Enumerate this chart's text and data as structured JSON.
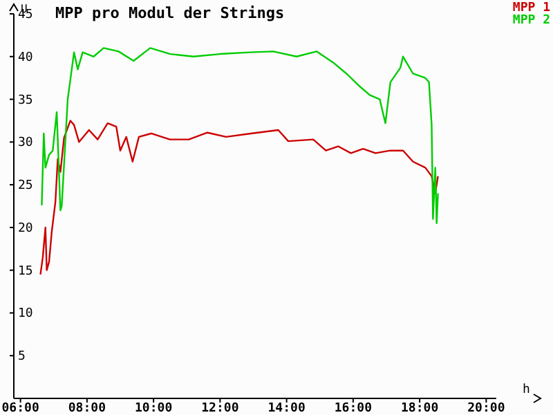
{
  "chart_data": {
    "type": "line",
    "title": "MPP pro Modul der Strings",
    "xlabel": "h",
    "ylabel": "U",
    "xlim": [
      5.8,
      20.3
    ],
    "ylim": [
      0,
      45
    ],
    "xticks": [
      {
        "value": 6,
        "label": "06:00"
      },
      {
        "value": 8,
        "label": "08:00"
      },
      {
        "value": 10,
        "label": "10:00"
      },
      {
        "value": 12,
        "label": "12:00"
      },
      {
        "value": 14,
        "label": "14:00"
      },
      {
        "value": 16,
        "label": "16:00"
      },
      {
        "value": 18,
        "label": "18:00"
      },
      {
        "value": 20,
        "label": "20:00"
      }
    ],
    "yticks": [
      5,
      10,
      15,
      20,
      25,
      30,
      35,
      40,
      45
    ],
    "legend": "top right",
    "marker": "none",
    "line_style": "solid",
    "series": [
      {
        "name": "MPP 1",
        "color": "#cc0000",
        "x": [
          6.6,
          6.67,
          6.75,
          6.79,
          6.86,
          6.94,
          7.05,
          7.12,
          7.2,
          7.31,
          7.5,
          7.61,
          7.76,
          8.06,
          8.32,
          8.62,
          8.88,
          9.0,
          9.18,
          9.37,
          9.56,
          9.93,
          10.49,
          11.06,
          11.62,
          12.18,
          12.93,
          13.75,
          14.05,
          14.8,
          15.18,
          15.55,
          15.93,
          16.3,
          16.67,
          17.12,
          17.5,
          17.8,
          18.17,
          18.36,
          18.47,
          18.55
        ],
        "values": [
          14.5,
          16.5,
          20,
          15,
          16,
          19.5,
          23,
          28,
          26.5,
          30.5,
          32.5,
          32,
          30,
          31.4,
          30.3,
          32.2,
          31.8,
          29,
          30.6,
          27.7,
          30.6,
          31,
          30.3,
          30.3,
          31.1,
          30.6,
          31,
          31.4,
          30.1,
          30.3,
          29,
          29.5,
          28.7,
          29.2,
          28.7,
          29,
          29,
          27.7,
          27,
          26,
          24,
          26
        ]
      },
      {
        "name": "MPP 2",
        "color": "#00cc00",
        "x": [
          6.64,
          6.7,
          6.75,
          6.86,
          6.97,
          7.09,
          7.2,
          7.24,
          7.42,
          7.61,
          7.72,
          7.87,
          8.2,
          8.5,
          8.95,
          9.4,
          9.9,
          10.5,
          11.2,
          12.0,
          12.9,
          13.6,
          14.3,
          14.9,
          15.4,
          15.8,
          16.2,
          16.5,
          16.8,
          16.97,
          17.12,
          17.42,
          17.5,
          17.8,
          18.17,
          18.28,
          18.36,
          18.4,
          18.47,
          18.51,
          18.55
        ],
        "values": [
          22.6,
          31,
          27,
          28.5,
          29,
          33.5,
          22,
          22.5,
          35,
          40.5,
          38.5,
          40.5,
          40,
          41,
          40.6,
          39.5,
          41,
          40.3,
          40,
          40.3,
          40.5,
          40.6,
          40,
          40.6,
          39.3,
          38,
          36.5,
          35.5,
          35,
          32.2,
          37,
          38.7,
          40,
          38,
          37.5,
          37,
          32,
          21,
          27,
          20.5,
          24
        ]
      }
    ]
  }
}
